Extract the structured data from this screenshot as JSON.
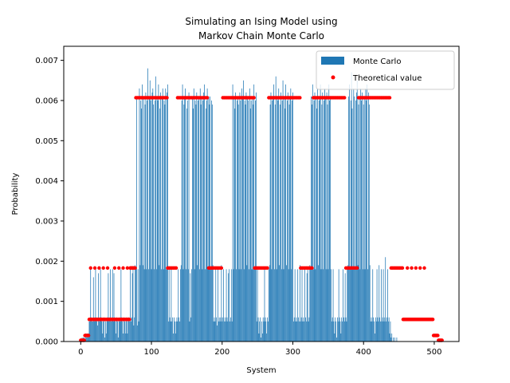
{
  "chart_data": {
    "type": "bar",
    "title_lines": [
      "Simulating an Ising Model using",
      "Markov Chain Monte Carlo"
    ],
    "xlabel": "System",
    "ylabel": "Probability",
    "xlim": [
      -24,
      535
    ],
    "ylim": [
      0,
      0.00735
    ],
    "xticks": [
      0,
      100,
      200,
      300,
      400,
      500
    ],
    "yticks": [
      0.0,
      0.001,
      0.002,
      0.003,
      0.004,
      0.005,
      0.006,
      0.007
    ],
    "ytick_format_decimals": 3,
    "grid": false,
    "legend": {
      "position": "upper right",
      "entries": [
        {
          "label": "Monte Carlo",
          "marker": "bar",
          "color": "#1f77b4"
        },
        {
          "label": "Theoretical value",
          "marker": "dot",
          "color": "#ff0000"
        }
      ]
    },
    "series": [
      {
        "name": "Monte Carlo",
        "kind": "bar",
        "color": "#1f77b4",
        "x_start": 0,
        "values": [
          0,
          0,
          0.0001,
          0,
          0.0001,
          0.0001,
          0,
          0.0002,
          0.0001,
          0.0002,
          0.0001,
          0.0002,
          0.0005,
          0.0005,
          0.0018,
          0.0006,
          0.0005,
          0.0005,
          0.0016,
          0.0005,
          0.0006,
          0.0018,
          0.0005,
          0.0006,
          0.0004,
          0.0017,
          0.0005,
          0.0006,
          0.0018,
          0.0006,
          0.0005,
          0.0002,
          0.0005,
          0.0006,
          0.0001,
          0.0005,
          0.0002,
          0.0005,
          0.0006,
          0.0017,
          0.0005,
          0.0006,
          0.0018,
          0.0005,
          0.0006,
          0.0018,
          0.0005,
          0.0017,
          0.0006,
          0.0005,
          0.0002,
          0.0006,
          0.0005,
          0.0001,
          0.0005,
          0.0006,
          0.0005,
          0.0018,
          0.0006,
          0.0005,
          0.0002,
          0.0006,
          0.0005,
          0.0002,
          0.0005,
          0.0006,
          0.0002,
          0.0005,
          0.0006,
          0.0005,
          0.0018,
          0.0005,
          0.0006,
          0.0017,
          0.0018,
          0.0004,
          0.0006,
          0.0019,
          0.0018,
          0.0061,
          0.0004,
          0.0018,
          0.0005,
          0.0063,
          0.0019,
          0.006,
          0.0058,
          0.0064,
          0.0019,
          0.0061,
          0.0018,
          0.0059,
          0.0062,
          0.0018,
          0.006,
          0.0068,
          0.0018,
          0.0061,
          0.0065,
          0.006,
          0.0018,
          0.0062,
          0.0063,
          0.0059,
          0.0018,
          0.006,
          0.0066,
          0.0018,
          0.0061,
          0.006,
          0.0064,
          0.0019,
          0.0058,
          0.0062,
          0.0018,
          0.0061,
          0.0063,
          0.0018,
          0.006,
          0.0059,
          0.0063,
          0.0018,
          0.0062,
          0.0064,
          0.0005,
          0.0018,
          0.0006,
          0.0005,
          0.0018,
          0.0005,
          0.0006,
          0.0002,
          0.0006,
          0.0005,
          0.0002,
          0.0005,
          0.0006,
          0.0005,
          0.0018,
          0.0006,
          0.0005,
          0.0018,
          0.0019,
          0.006,
          0.0064,
          0.0018,
          0.0059,
          0.0061,
          0.0063,
          0.0018,
          0.0058,
          0.006,
          0.0018,
          0.0062,
          0.0005,
          0.0017,
          0.0006,
          0.0018,
          0.0061,
          0.0058,
          0.0063,
          0.0018,
          0.006,
          0.0059,
          0.0062,
          0.0019,
          0.006,
          0.0061,
          0.0018,
          0.0063,
          0.0059,
          0.0061,
          0.0018,
          0.006,
          0.0062,
          0.0064,
          0.0018,
          0.0058,
          0.006,
          0.0063,
          0.0018,
          0.0061,
          0.0059,
          0.0061,
          0.0018,
          0.006,
          0.0059,
          0.0019,
          0.0005,
          0.0006,
          0.0005,
          0.0018,
          0.0006,
          0.0004,
          0.0018,
          0.0005,
          0.0006,
          0.0005,
          0.0006,
          0.0019,
          0.0005,
          0.0006,
          0.0018,
          0.0005,
          0.0006,
          0.0005,
          0.0018,
          0.0006,
          0.0005,
          0.0017,
          0.0018,
          0.0005,
          0.0006,
          0.0018,
          0.0005,
          0.0064,
          0.0018,
          0.0061,
          0.0058,
          0.0062,
          0.0018,
          0.006,
          0.0061,
          0.0059,
          0.0018,
          0.0062,
          0.006,
          0.0018,
          0.0063,
          0.0061,
          0.0065,
          0.0018,
          0.006,
          0.0059,
          0.0062,
          0.0019,
          0.0061,
          0.006,
          0.0018,
          0.0063,
          0.0058,
          0.006,
          0.0018,
          0.0061,
          0.0059,
          0.0064,
          0.0018,
          0.006,
          0.0062,
          0.0005,
          0.0018,
          0.0006,
          0.0002,
          0.0005,
          0.0006,
          0.0001,
          0.0005,
          0.0002,
          0.0006,
          0.0005,
          0.0018,
          0.0006,
          0.0005,
          0.0002,
          0.0006,
          0.0005,
          0.0018,
          0.0019,
          0.0059,
          0.0062,
          0.0018,
          0.006,
          0.0061,
          0.0064,
          0.0018,
          0.0059,
          0.0066,
          0.0018,
          0.0061,
          0.006,
          0.0063,
          0.0019,
          0.0059,
          0.0062,
          0.0018,
          0.006,
          0.0065,
          0.0018,
          0.0061,
          0.0058,
          0.0064,
          0.0019,
          0.006,
          0.0062,
          0.0018,
          0.0059,
          0.0061,
          0.0063,
          0.0018,
          0.006,
          0.0062,
          0.0005,
          0.0006,
          0.0018,
          0.0005,
          0.0006,
          0.0005,
          0.0018,
          0.0006,
          0.0005,
          0.0019,
          0.0005,
          0.0006,
          0.0018,
          0.0005,
          0.0006,
          0.0005,
          0.0018,
          0.0006,
          0.0005,
          0.0017,
          0.0018,
          0.0005,
          0.0006,
          0.0019,
          0.0018,
          0.0061,
          0.0059,
          0.0064,
          0.0018,
          0.006,
          0.0062,
          0.0018,
          0.0061,
          0.0058,
          0.0063,
          0.0019,
          0.006,
          0.0061,
          0.0064,
          0.0018,
          0.0059,
          0.0062,
          0.0018,
          0.006,
          0.0063,
          0.0061,
          0.0018,
          0.0062,
          0.0059,
          0.0018,
          0.0064,
          0.006,
          0.0061,
          0.0018,
          0.0005,
          0.0006,
          0.0018,
          0.0005,
          0.0002,
          0.0006,
          0.0005,
          0.0001,
          0.0006,
          0.0005,
          0.0018,
          0.0006,
          0.0005,
          0.0002,
          0.0006,
          0.0005,
          0.0018,
          0.0006,
          0.0005,
          0.0017,
          0.0006,
          0.0005,
          0.0018,
          0.0019,
          0.0061,
          0.0064,
          0.0018,
          0.006,
          0.0067,
          0.0058,
          0.0018,
          0.0063,
          0.0061,
          0.0018,
          0.006,
          0.0062,
          0.0065,
          0.0019,
          0.0059,
          0.0061,
          0.0018,
          0.0063,
          0.006,
          0.0062,
          0.0018,
          0.0059,
          0.0061,
          0.0018,
          0.0063,
          0.006,
          0.0064,
          0.0018,
          0.0062,
          0.0059,
          0.0019,
          0.0005,
          0.0006,
          0.0005,
          0.0018,
          0.0006,
          0.0005,
          0.0002,
          0.0006,
          0.0005,
          0.0018,
          0.0006,
          0.0005,
          0.0019,
          0.0006,
          0.0005,
          0.0018,
          0.0005,
          0.0006,
          0.0018,
          0.0005,
          0.0006,
          0.0021,
          0.0005,
          0.0006,
          0.0018,
          0.0005,
          0.0006,
          0.0002,
          0.0005,
          0.0001,
          0.0002,
          0,
          0.0001,
          0,
          0.0001,
          0,
          0,
          0.0001,
          0,
          0,
          0,
          0,
          0,
          0,
          0,
          0,
          0,
          0,
          0,
          0,
          0,
          0,
          0,
          0,
          0,
          0,
          0,
          0
        ]
      },
      {
        "name": "Theoretical value",
        "kind": "scatter",
        "color": "#ff0000",
        "segments": [
          {
            "x_from": 0,
            "x_to": 5,
            "value": 3e-05
          },
          {
            "x_from": 6,
            "x_to": 11,
            "value": 0.00015
          },
          {
            "x_from": 12,
            "x_to": 69,
            "value": 0.00055
          },
          {
            "x_from": 14,
            "x_to": 40,
            "step": 6,
            "value": 0.00183
          },
          {
            "x_from": 48,
            "x_to": 66,
            "step": 6,
            "value": 0.00183
          },
          {
            "x_from": 70,
            "x_to": 77,
            "value": 0.00183
          },
          {
            "x_from": 78,
            "x_to": 122,
            "step": 2,
            "value": 0.00607
          },
          {
            "x_from": 123,
            "x_to": 136,
            "step": 2,
            "value": 0.00183
          },
          {
            "x_from": 137,
            "x_to": 180,
            "step": 2,
            "value": 0.00607
          },
          {
            "x_from": 181,
            "x_to": 200,
            "step": 2,
            "value": 0.00183
          },
          {
            "x_from": 201,
            "x_to": 245,
            "step": 2,
            "value": 0.00607
          },
          {
            "x_from": 246,
            "x_to": 265,
            "step": 2,
            "value": 0.00183
          },
          {
            "x_from": 266,
            "x_to": 310,
            "step": 2,
            "value": 0.00607
          },
          {
            "x_from": 311,
            "x_to": 328,
            "step": 2,
            "value": 0.00183
          },
          {
            "x_from": 329,
            "x_to": 374,
            "step": 2,
            "value": 0.00607
          },
          {
            "x_from": 375,
            "x_to": 392,
            "step": 2,
            "value": 0.00183
          },
          {
            "x_from": 393,
            "x_to": 438,
            "step": 2,
            "value": 0.00607
          },
          {
            "x_from": 439,
            "x_to": 455,
            "step": 2,
            "value": 0.00183
          },
          {
            "x_from": 456,
            "x_to": 498,
            "value": 0.00055
          },
          {
            "x_from": 462,
            "x_to": 490,
            "step": 6,
            "value": 0.00183
          },
          {
            "x_from": 499,
            "x_to": 505,
            "value": 0.00015
          },
          {
            "x_from": 506,
            "x_to": 511,
            "value": 3e-05
          }
        ]
      }
    ]
  }
}
